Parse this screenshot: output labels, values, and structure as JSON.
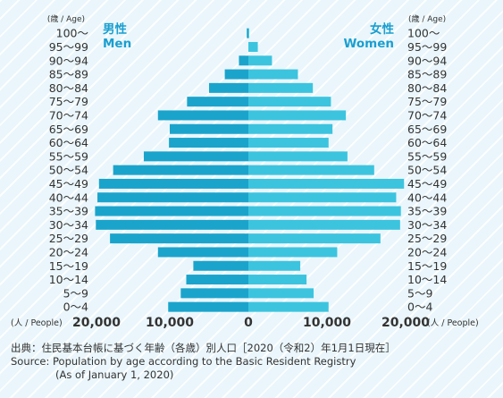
{
  "chart_data": {
    "type": "bar",
    "orientation": "horizontal-population-pyramid",
    "age_unit_label": "(歳 / Age)",
    "categories": [
      "100～",
      "95～99",
      "90～94",
      "85～89",
      "80～84",
      "75～79",
      "70～74",
      "65～69",
      "60～64",
      "55～59",
      "50～54",
      "45～49",
      "40～44",
      "35～39",
      "30～34",
      "25～29",
      "20～24",
      "15～19",
      "10～14",
      "5～9",
      "0～4"
    ],
    "series": [
      {
        "name_ja": "男性",
        "name_en": "Men",
        "side": "left",
        "color": "#1aa4cc",
        "values": [
          200,
          0,
          1200,
          3000,
          5000,
          7800,
          11500,
          10000,
          10100,
          13300,
          17200,
          19000,
          19200,
          19500,
          19400,
          17600,
          11500,
          7000,
          7900,
          8600,
          10200
        ]
      },
      {
        "name_ja": "女性",
        "name_en": "Women",
        "side": "right",
        "color": "#3cc4df",
        "values": [
          100,
          1200,
          3000,
          6300,
          8200,
          10500,
          12400,
          10700,
          10200,
          12600,
          16000,
          19800,
          18800,
          19400,
          19300,
          16800,
          11300,
          6600,
          7400,
          8300,
          10200
        ]
      }
    ],
    "x_ticks": [
      "20,000",
      "10,000",
      "0",
      "10,000",
      "20,000"
    ],
    "x_tick_values": [
      -20000,
      -10000,
      0,
      10000,
      20000
    ],
    "xlim": [
      -20000,
      20000
    ],
    "people_unit_label": "(人 / People)",
    "grid": false
  },
  "source": {
    "line1": "出典：住民基本台帳に基づく年齢（各歳）別人口［2020（令和2）年1月1日現在］",
    "line2": "Source: Population by age according to the Basic Resident Registry",
    "line3": "(As of January 1, 2020)"
  }
}
